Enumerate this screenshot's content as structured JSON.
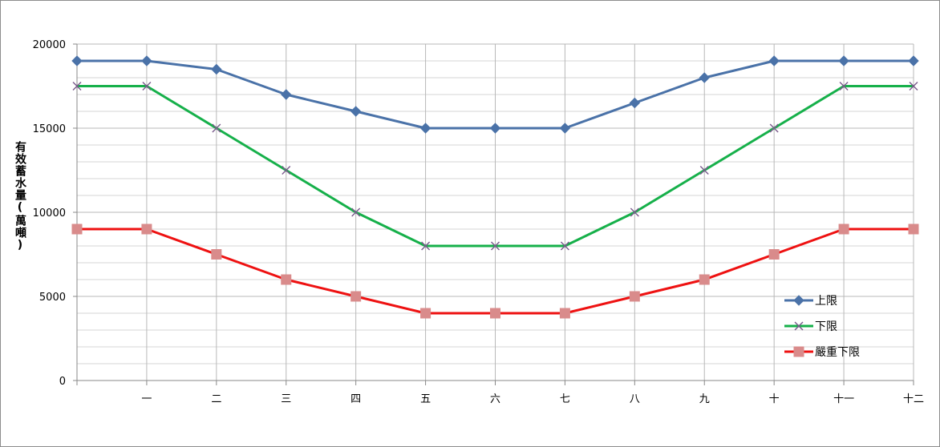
{
  "chart_data": {
    "type": "line",
    "ylabel": "有效蓄水量(萬噸)",
    "xlabel": "",
    "title": "",
    "categories": [
      "",
      "一",
      "二",
      "三",
      "四",
      "五",
      "六",
      "七",
      "八",
      "九",
      "十",
      "十一",
      "十二"
    ],
    "ylim": [
      0,
      20000
    ],
    "yticks": [
      0,
      5000,
      10000,
      15000,
      20000
    ],
    "grid": "horizontal major and minor, vertical at categories",
    "legend_position": "right",
    "series": [
      {
        "name": "上限",
        "color": "#4a72a8",
        "marker": "diamond",
        "values": [
          19000,
          19000,
          18500,
          17000,
          16000,
          15000,
          15000,
          15000,
          16500,
          18000,
          19000,
          19000,
          19000
        ]
      },
      {
        "name": "下限",
        "color": "#16b04a",
        "marker": "x",
        "values": [
          17500,
          17500,
          15000,
          12500,
          10000,
          8000,
          8000,
          8000,
          10000,
          12500,
          15000,
          17500,
          17500
        ]
      },
      {
        "name": "嚴重下限",
        "color": "#ee1111",
        "marker": "square",
        "markerColor": "#d98b8b",
        "values": [
          9000,
          9000,
          7500,
          6000,
          5000,
          4000,
          4000,
          4000,
          5000,
          6000,
          7500,
          9000,
          9000
        ]
      }
    ]
  }
}
